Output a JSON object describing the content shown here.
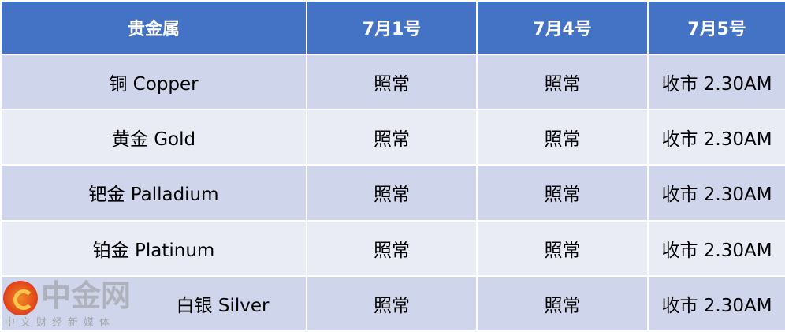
{
  "table": {
    "headers": [
      "贵金属",
      "7月1号",
      "7月4号",
      "7月5号"
    ],
    "rows": [
      [
        "铜 Copper",
        "照常",
        "照常",
        "收市 2.30AM"
      ],
      [
        "黄金 Gold",
        "照常",
        "照常",
        "收市 2.30AM"
      ],
      [
        "钯金 Palladium",
        "照常",
        "照常",
        "收市 2.30AM"
      ],
      [
        "铂金 Platinum",
        "照常",
        "照常",
        "收市 2.30AM"
      ],
      [
        "白银 Silver",
        "照常",
        "照常",
        "收市 2.30AM"
      ]
    ]
  },
  "colors": {
    "header": "#4472C4",
    "row_odd": "#CFD5EA",
    "row_even": "#E9EBF5"
  },
  "watermark": {
    "title": "中金网",
    "subtitle": "中文财经新媒体"
  }
}
